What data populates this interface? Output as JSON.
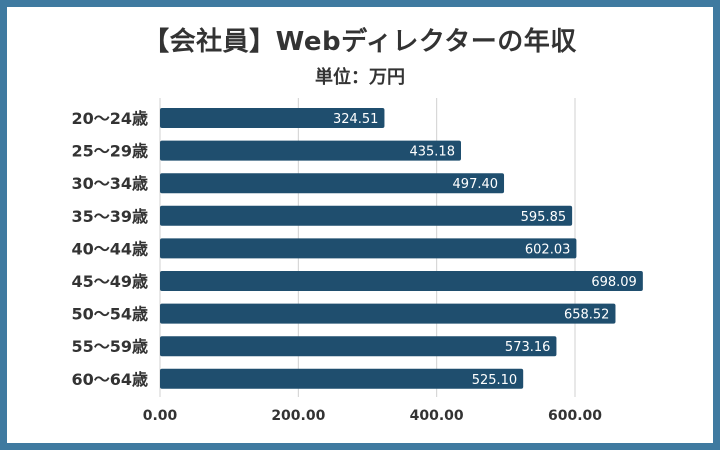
{
  "chart_data": {
    "type": "bar",
    "orientation": "horizontal",
    "title": "【会社員】Webディレクターの年収",
    "subtitle": "単位：万円",
    "categories": [
      "20〜24歳",
      "25〜29歳",
      "30〜34歳",
      "35〜39歳",
      "40〜44歳",
      "45〜49歳",
      "50〜54歳",
      "55〜59歳",
      "60〜64歳"
    ],
    "values": [
      324.51,
      435.18,
      497.4,
      595.85,
      602.03,
      698.09,
      658.52,
      573.16,
      525.1
    ],
    "value_labels": [
      "324.51",
      "435.18",
      "497.40",
      "595.85",
      "602.03",
      "698.09",
      "658.52",
      "573.16",
      "525.10"
    ],
    "xlim": [
      0,
      700
    ],
    "xticks": [
      0,
      200,
      400,
      600
    ],
    "xtick_labels": [
      "0.00",
      "200.00",
      "400.00",
      "600.00"
    ],
    "grid": true,
    "bar_color": "#1f4e6e",
    "grid_color": "#d0d0d0"
  }
}
